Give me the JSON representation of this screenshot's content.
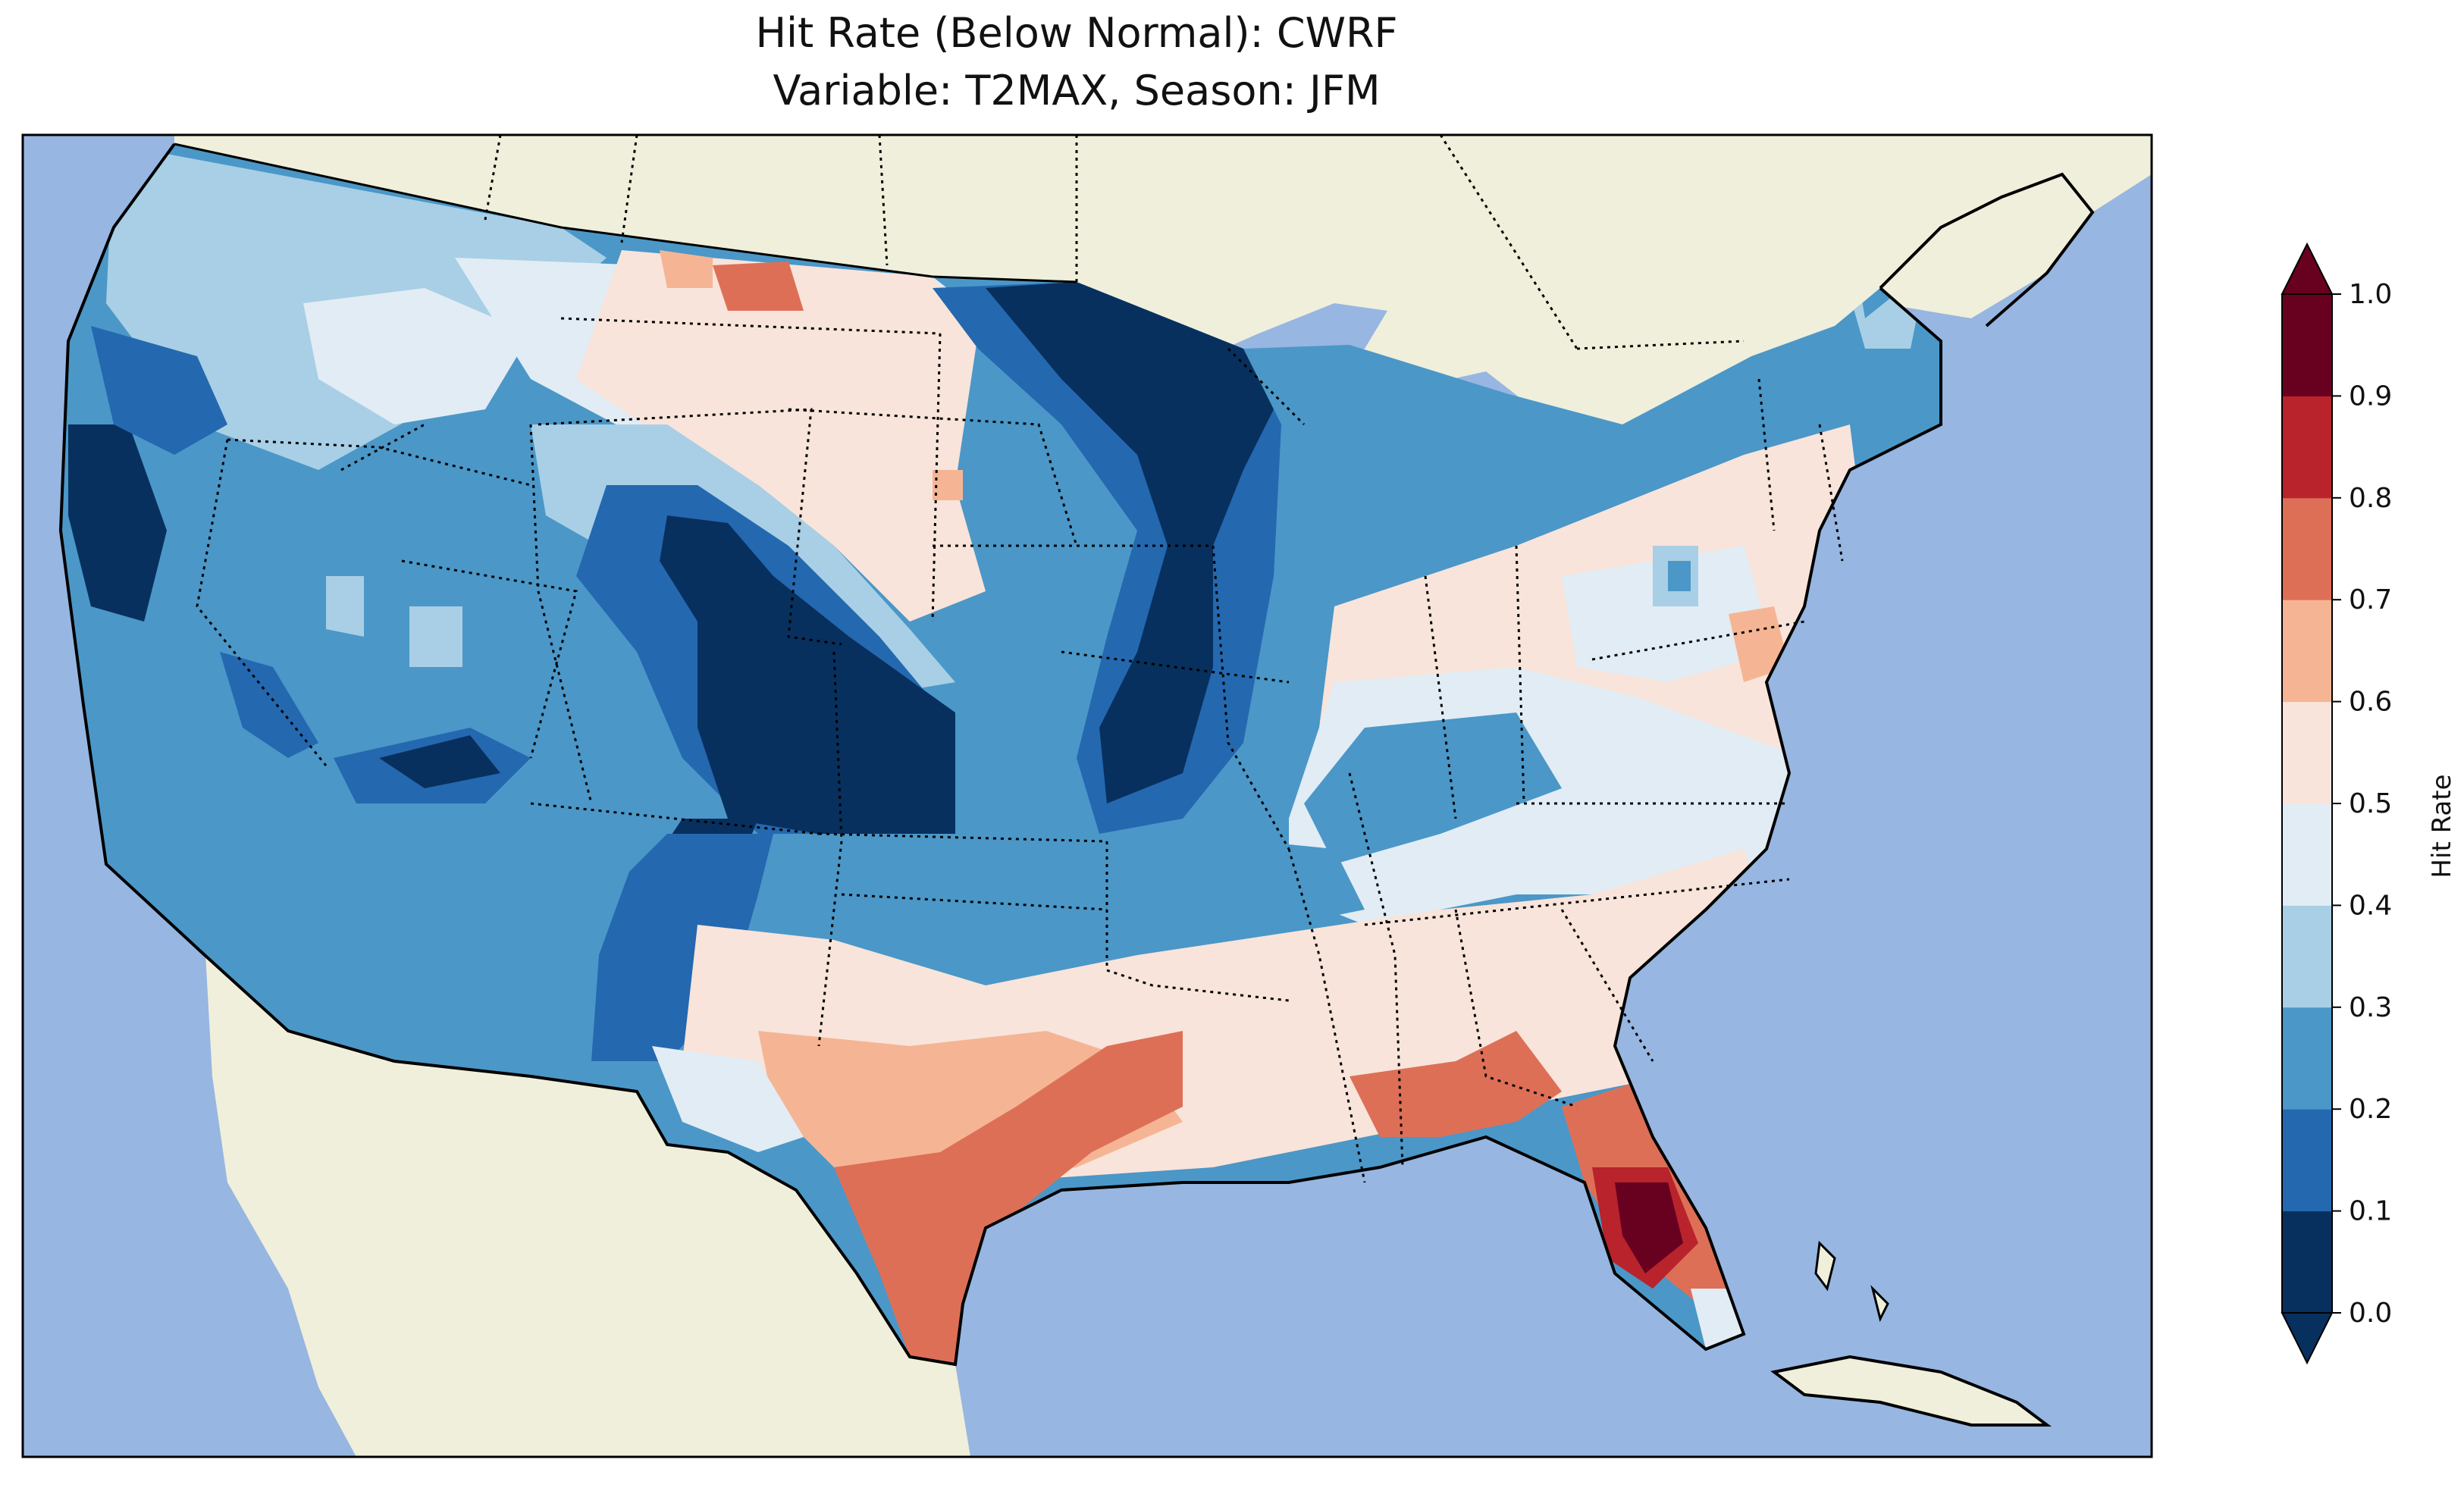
{
  "title": {
    "line1": "Hit Rate (Below Normal): CWRF",
    "line2": "Variable: T2MAX, Season: JFM"
  },
  "colors": {
    "ocean": "#97b6e1",
    "land": "#efefdb",
    "lakes": "#97b6e1"
  },
  "colorbar": {
    "label": "Hit Rate",
    "ticks": [
      "0.0",
      "0.1",
      "0.2",
      "0.3",
      "0.4",
      "0.5",
      "0.6",
      "0.7",
      "0.8",
      "0.9",
      "1.0"
    ],
    "bins": [
      {
        "range": "0.0-0.1",
        "color": "#08305e"
      },
      {
        "range": "0.1-0.2",
        "color": "#2468b0"
      },
      {
        "range": "0.2-0.3",
        "color": "#4b97c8"
      },
      {
        "range": "0.3-0.4",
        "color": "#a8cfe5"
      },
      {
        "range": "0.4-0.5",
        "color": "#e2ecf4"
      },
      {
        "range": "0.5-0.6",
        "color": "#f8e4da"
      },
      {
        "range": "0.6-0.7",
        "color": "#f5b595"
      },
      {
        "range": "0.7-0.8",
        "color": "#de6f57"
      },
      {
        "range": "0.8-0.9",
        "color": "#b8232c"
      },
      {
        "range": "0.9-1.0",
        "color": "#680020"
      }
    ]
  }
}
